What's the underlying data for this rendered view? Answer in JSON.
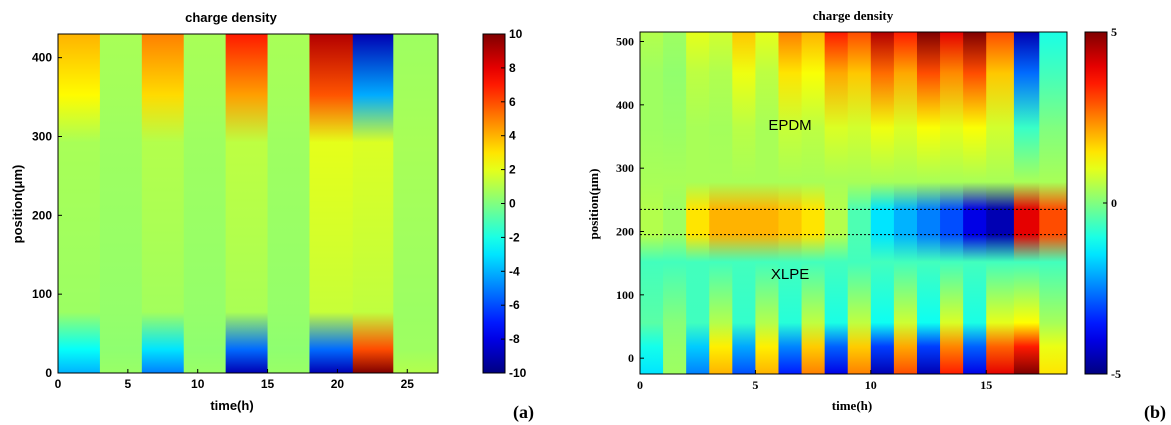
{
  "panel_labels": [
    "(a)",
    "(b)"
  ],
  "chart_data": [
    {
      "type": "heatmap",
      "panel": "(a)",
      "title": "charge density",
      "xlabel": "time(h)",
      "ylabel": "position(μm)",
      "xlim": [
        0,
        27.2
      ],
      "ylim": [
        0,
        430
      ],
      "xticks": [
        0,
        5,
        10,
        15,
        20,
        25
      ],
      "yticks": [
        0,
        100,
        200,
        300,
        400
      ],
      "colorbar": {
        "min": -10,
        "max": 10,
        "ticks": [
          10,
          8,
          6,
          4,
          2,
          0,
          -2,
          -4,
          -6,
          -8,
          -10
        ]
      },
      "columns": [
        {
          "t0": 0,
          "t1": 3.0,
          "bottom": -4,
          "top": 4,
          "bulk": 0.8
        },
        {
          "t0": 3.0,
          "t1": 6.0,
          "bottom": 0.5,
          "top": 0.8,
          "bulk": 0.6
        },
        {
          "t0": 6.0,
          "t1": 9.0,
          "bottom": -5,
          "top": 5,
          "bulk": 1.0
        },
        {
          "t0": 9.0,
          "t1": 12.0,
          "bottom": 0.5,
          "top": 0.8,
          "bulk": 0.6
        },
        {
          "t0": 12.0,
          "t1": 15.0,
          "bottom": -9,
          "top": 7,
          "bulk": 1.2
        },
        {
          "t0": 15.0,
          "t1": 18.0,
          "bottom": 0.5,
          "top": 0.8,
          "bulk": 0.6
        },
        {
          "t0": 18.0,
          "t1": 21.1,
          "bottom": -9,
          "top": 9,
          "bulk": 2.0
        },
        {
          "t0": 21.1,
          "t1": 24.0,
          "bottom": 10,
          "top": -9,
          "bulk": 1.8
        },
        {
          "t0": 24.0,
          "t1": 27.2,
          "bottom": 1.0,
          "top": 0.6,
          "bulk": 0.8
        }
      ]
    },
    {
      "type": "heatmap",
      "panel": "(b)",
      "title": "charge density",
      "xlabel": "time(h)",
      "ylabel": "position(μm)",
      "xlim": [
        0,
        18.5
      ],
      "ylim": [
        -25,
        515
      ],
      "xticks": [
        0,
        5,
        10,
        15
      ],
      "yticks": [
        0,
        100,
        200,
        300,
        400,
        500
      ],
      "colorbar": {
        "min": -5,
        "max": 5,
        "ticks": [
          5,
          0,
          -5
        ]
      },
      "annotations": [
        {
          "text": "EPDM",
          "x": 6.5,
          "y": 360
        },
        {
          "text": "XLPE",
          "x": 6.5,
          "y": 125
        }
      ],
      "interface_band": [
        195,
        235
      ],
      "columns": [
        {
          "t0": 0,
          "t1": 1.0,
          "bottom": -1.5,
          "top": 0.5,
          "iface": 0.5
        },
        {
          "t0": 1.0,
          "t1": 2.0,
          "bottom": 0.3,
          "top": 0.3,
          "iface": 0.3
        },
        {
          "t0": 2.0,
          "t1": 3.0,
          "bottom": -2.5,
          "top": 1.0,
          "iface": 1.5
        },
        {
          "t0": 3.0,
          "t1": 4.0,
          "bottom": 2.0,
          "top": 0.8,
          "iface": 2.0
        },
        {
          "t0": 4.0,
          "t1": 5.0,
          "bottom": -3.0,
          "top": 1.8,
          "iface": 2.0
        },
        {
          "t0": 5.0,
          "t1": 6.0,
          "bottom": 2.0,
          "top": 1.0,
          "iface": 2.0
        },
        {
          "t0": 6.0,
          "t1": 7.0,
          "bottom": -3.5,
          "top": 2.5,
          "iface": 1.8
        },
        {
          "t0": 7.0,
          "t1": 8.0,
          "bottom": 2.5,
          "top": 2.0,
          "iface": 1.5
        },
        {
          "t0": 8.0,
          "t1": 9.0,
          "bottom": -4.0,
          "top": 3.5,
          "iface": 0.5
        },
        {
          "t0": 9.0,
          "t1": 10.0,
          "bottom": 2.5,
          "top": 3.0,
          "iface": -0.5
        },
        {
          "t0": 10.0,
          "t1": 11.0,
          "bottom": -4.5,
          "top": 4.5,
          "iface": -1.5
        },
        {
          "t0": 11.0,
          "t1": 12.0,
          "bottom": 3.0,
          "top": 3.5,
          "iface": -2.0
        },
        {
          "t0": 12.0,
          "t1": 13.0,
          "bottom": -4.5,
          "top": 5.0,
          "iface": -2.5
        },
        {
          "t0": 13.0,
          "t1": 14.0,
          "bottom": 3.5,
          "top": 4.0,
          "iface": -3.0
        },
        {
          "t0": 14.0,
          "t1": 15.0,
          "bottom": -4.0,
          "top": 5.0,
          "iface": -4.0
        },
        {
          "t0": 15.0,
          "t1": 16.2,
          "bottom": 4.0,
          "top": 3.0,
          "iface": -4.5
        },
        {
          "t0": 16.2,
          "t1": 17.3,
          "bottom": 5.0,
          "top": -4.5,
          "iface": 4.0
        },
        {
          "t0": 17.3,
          "t1": 18.5,
          "bottom": 1.5,
          "top": -1.0,
          "iface": 3.0
        }
      ]
    }
  ]
}
